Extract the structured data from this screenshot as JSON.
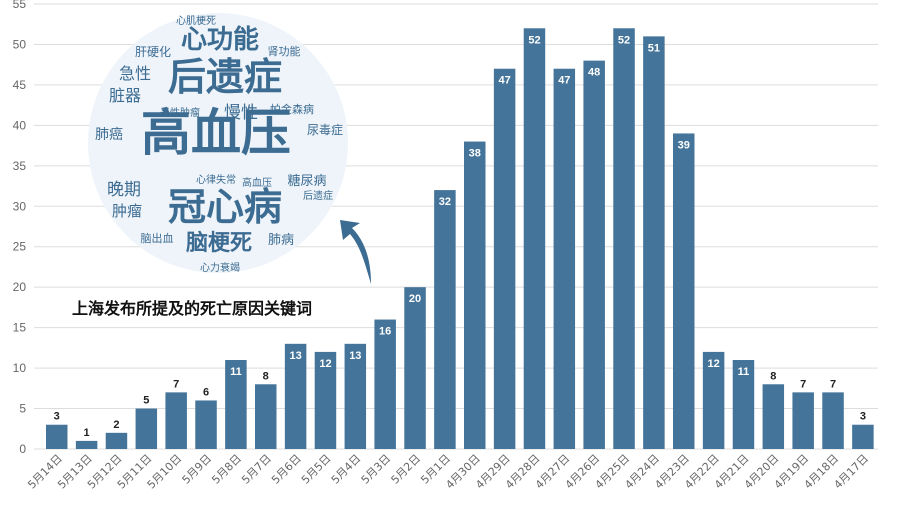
{
  "chart_data": {
    "type": "bar",
    "title": "",
    "xlabel": "",
    "ylabel": "",
    "ylim": [
      0,
      55
    ],
    "yticks": [
      0,
      5,
      10,
      15,
      20,
      25,
      30,
      35,
      40,
      45,
      50,
      55
    ],
    "grid": true,
    "categories": [
      "5月14日",
      "5月13日",
      "5月12日",
      "5月11日",
      "5月10日",
      "5月9日",
      "5月8日",
      "5月7日",
      "5月6日",
      "5月5日",
      "5月4日",
      "5月3日",
      "5月2日",
      "5月1日",
      "4月30日",
      "4月29日",
      "4月28日",
      "4月27日",
      "4月26日",
      "4月25日",
      "4月24日",
      "4月23日",
      "4月22日",
      "4月21日",
      "4月20日",
      "4月19日",
      "4月18日",
      "4月17日"
    ],
    "values": [
      3,
      1,
      2,
      5,
      7,
      6,
      11,
      8,
      13,
      12,
      13,
      16,
      20,
      32,
      38,
      47,
      52,
      47,
      48,
      52,
      51,
      39,
      12,
      11,
      8,
      7,
      7,
      3
    ],
    "bar_color": "#44749a",
    "label_color_outside": "#222222",
    "label_color_inside": "#ffffff"
  },
  "wordcloud": {
    "caption": "上海发布所提及的死亡原因关键词",
    "circle_color": "#eef4f9",
    "text_color": "#3d6c93",
    "words": [
      {
        "text": "高血压",
        "weight": 6
      },
      {
        "text": "后遗症",
        "weight": 5
      },
      {
        "text": "冠心病",
        "weight": 5
      },
      {
        "text": "心功能",
        "weight": 3
      },
      {
        "text": "脑梗死",
        "weight": 3
      },
      {
        "text": "急性",
        "weight": 2
      },
      {
        "text": "脏器",
        "weight": 2
      },
      {
        "text": "晚期",
        "weight": 2
      },
      {
        "text": "慢性",
        "weight": 2
      },
      {
        "text": "肺癌",
        "weight": 1.5
      },
      {
        "text": "肿瘤",
        "weight": 1.5
      },
      {
        "text": "糖尿病",
        "weight": 1.5
      },
      {
        "text": "肺病",
        "weight": 1.5
      },
      {
        "text": "肝硬化",
        "weight": 1
      },
      {
        "text": "肾功能",
        "weight": 1
      },
      {
        "text": "帕金森病",
        "weight": 1
      },
      {
        "text": "恶性肿瘤",
        "weight": 1
      },
      {
        "text": "尿毒症",
        "weight": 1
      },
      {
        "text": "心律失常",
        "weight": 1
      },
      {
        "text": "高血压",
        "weight": 1
      },
      {
        "text": "后遗症",
        "weight": 1
      },
      {
        "text": "脑出血",
        "weight": 1
      },
      {
        "text": "心力衰竭",
        "weight": 1
      },
      {
        "text": "心肌梗死",
        "weight": 1
      }
    ]
  }
}
